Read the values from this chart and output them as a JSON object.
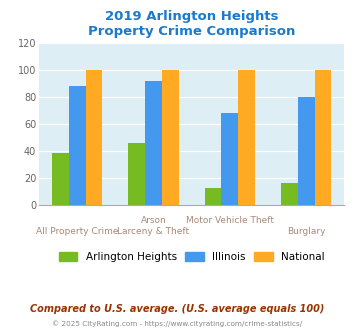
{
  "title": "2019 Arlington Heights\nProperty Crime Comparison",
  "title_color": "#1a7acc",
  "categories": [
    "All Property Crime",
    "Arson\nLarceny & Theft",
    "Motor Vehicle Theft",
    "Burglary"
  ],
  "xtick_top": [
    "",
    "Arson",
    "Motor Vehicle Theft",
    ""
  ],
  "xtick_bottom": [
    "All Property Crime",
    "Larceny & Theft",
    "",
    "Burglary"
  ],
  "series": {
    "Arlington Heights": [
      38,
      46,
      12,
      16
    ],
    "Illinois": [
      88,
      92,
      68,
      80
    ],
    "National": [
      100,
      100,
      100,
      100
    ]
  },
  "colors": {
    "Arlington Heights": "#77bb22",
    "Illinois": "#4499ee",
    "National": "#ffaa22"
  },
  "ylim": [
    0,
    120
  ],
  "yticks": [
    0,
    20,
    40,
    60,
    80,
    100,
    120
  ],
  "plot_bg": "#ddeef5",
  "footnote1": "Compared to U.S. average. (U.S. average equals 100)",
  "footnote1_color": "#993300",
  "footnote2": "© 2025 CityRating.com - https://www.cityrating.com/crime-statistics/",
  "footnote2_color": "#888888",
  "bar_width": 0.22
}
